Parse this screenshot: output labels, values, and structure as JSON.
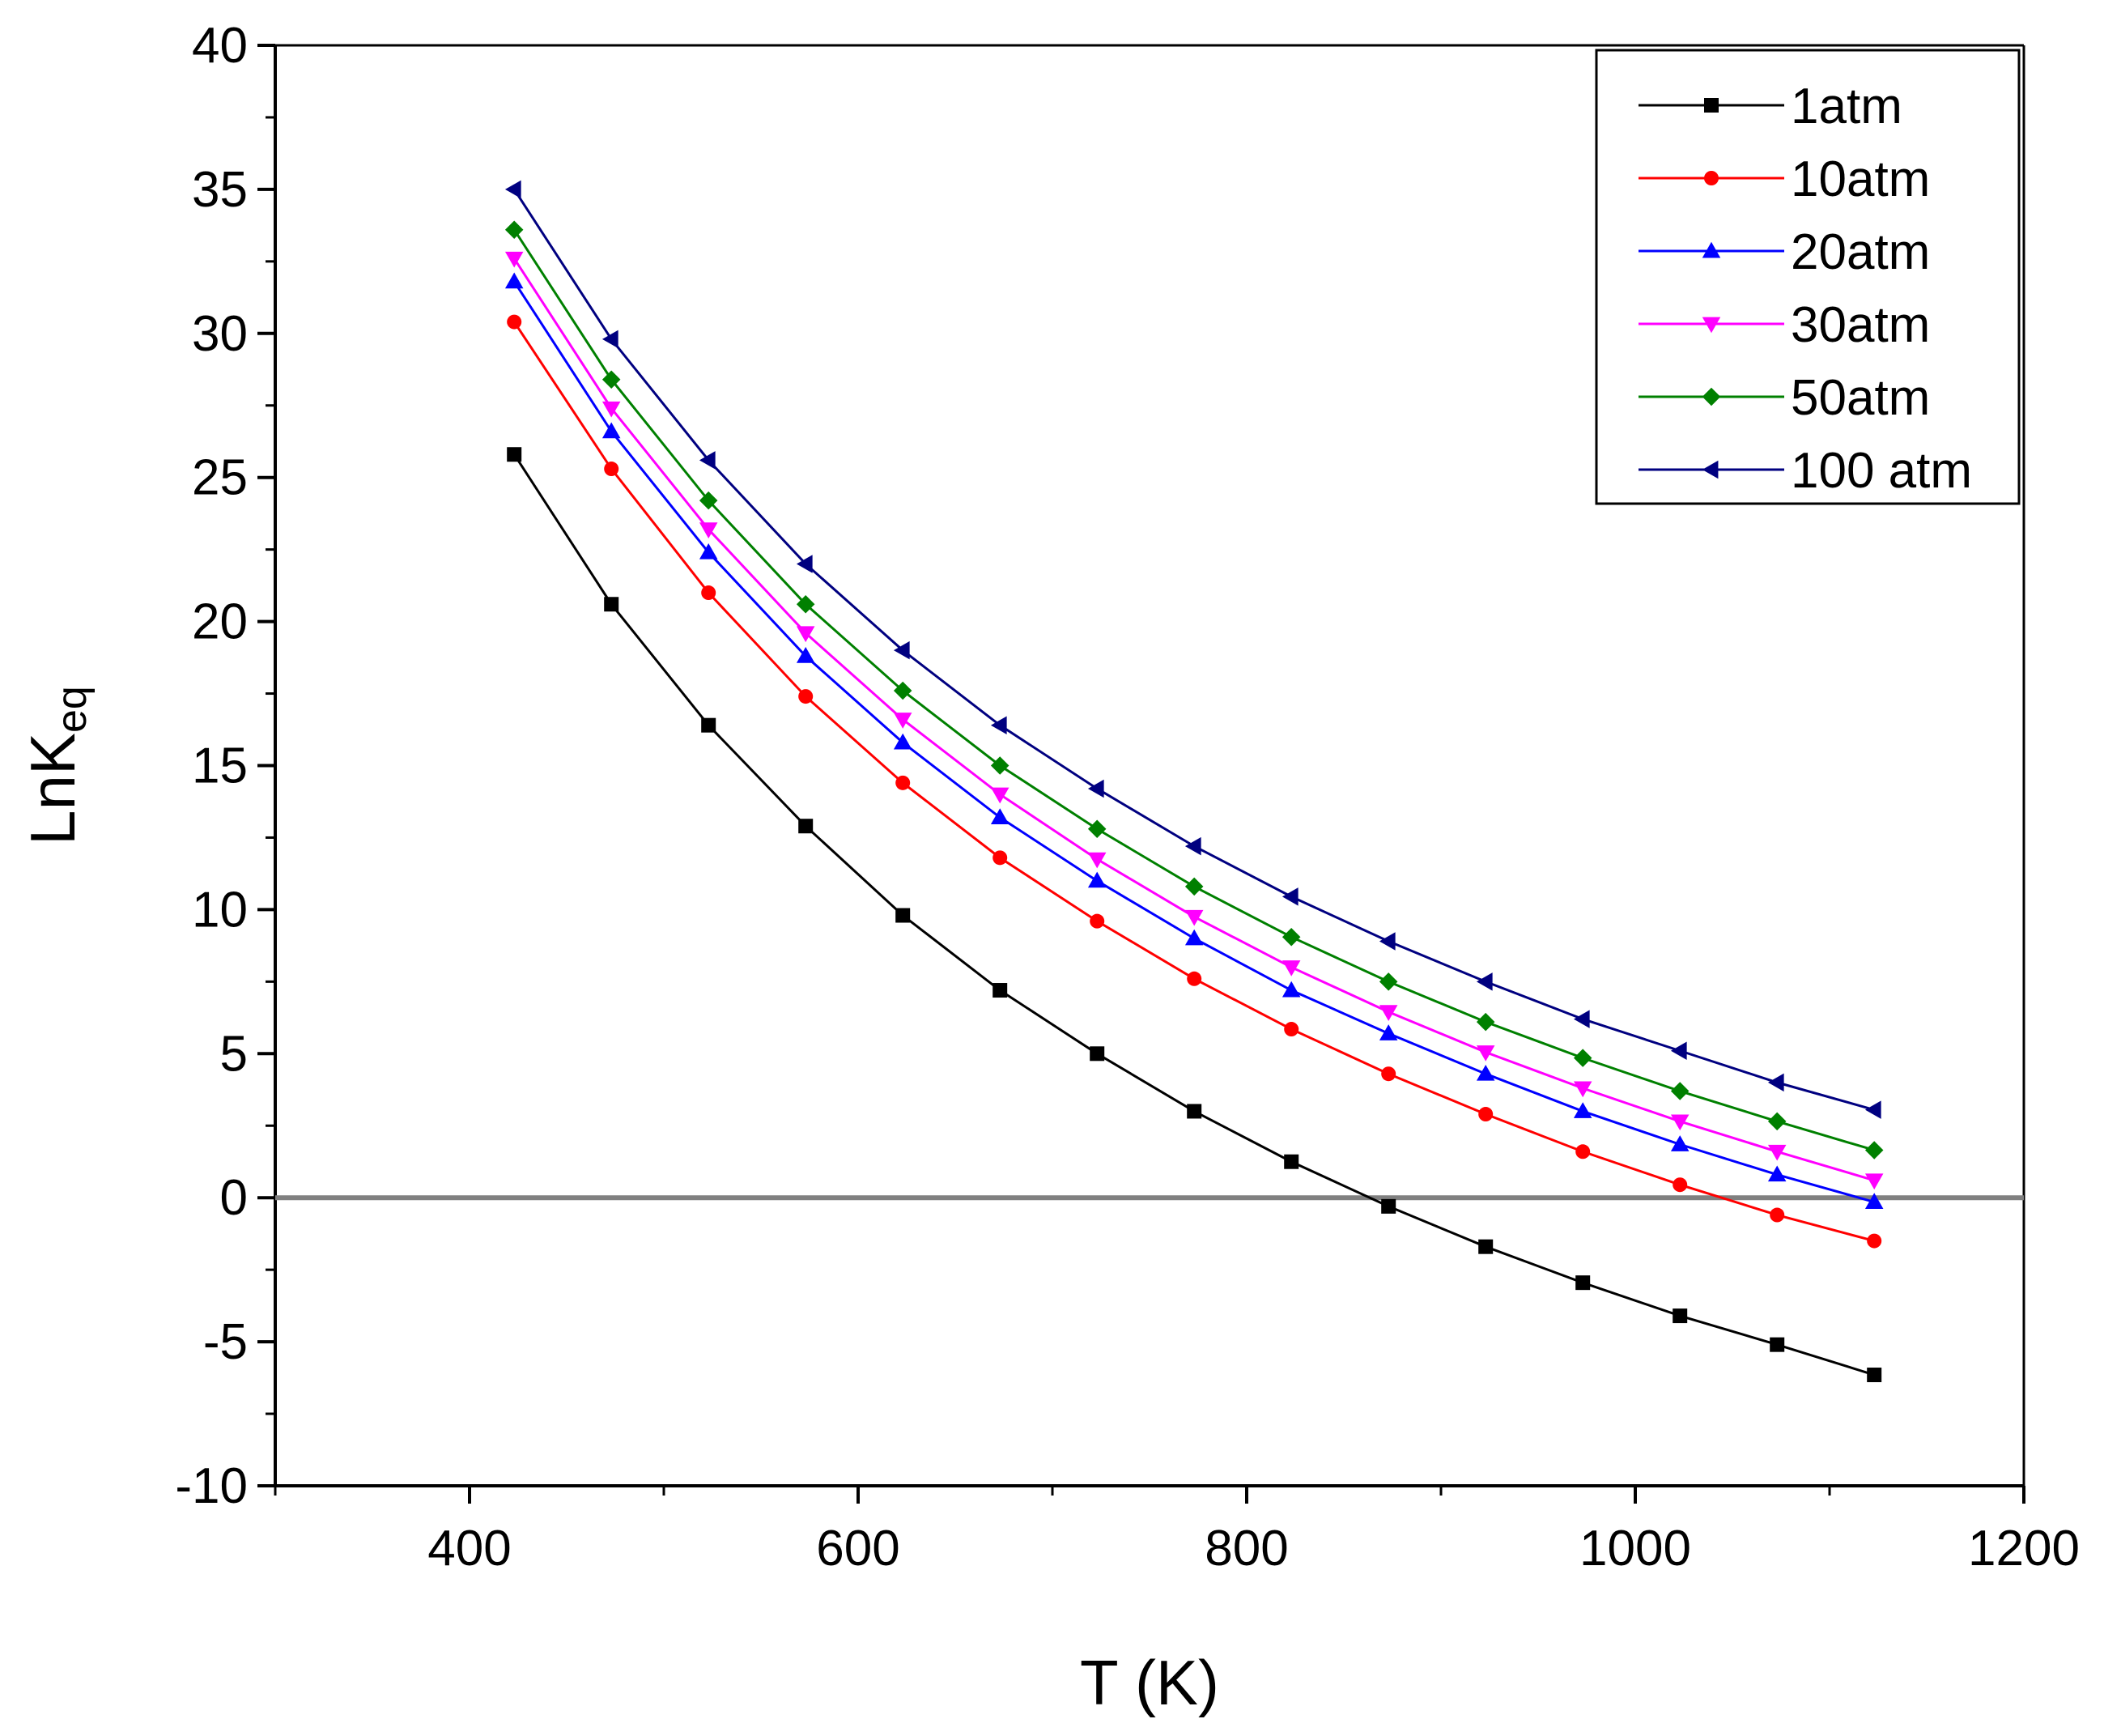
{
  "chart_data": {
    "type": "line",
    "title": "",
    "xlabel": "T (K)",
    "ylabel": {
      "base": "LnK",
      "sub": "eq"
    },
    "xlim": [
      300,
      1200
    ],
    "ylim": [
      -10,
      40
    ],
    "xticks": [
      400,
      600,
      800,
      1000,
      1200
    ],
    "yticks": [
      -10,
      -5,
      0,
      5,
      10,
      15,
      20,
      25,
      30,
      35,
      40
    ],
    "reference_line": {
      "y": 0,
      "color": "#808080"
    },
    "legend_position": "top-right",
    "x": [
      423,
      473,
      523,
      573,
      623,
      673,
      723,
      773,
      823,
      873,
      923,
      973,
      1023,
      1073,
      1123
    ],
    "series": [
      {
        "name": "1atm",
        "color": "#000000",
        "marker": "square",
        "values": [
          25.8,
          20.6,
          16.4,
          12.9,
          9.8,
          7.2,
          5.0,
          3.0,
          1.25,
          -0.3,
          -1.7,
          -2.95,
          -4.1,
          -5.1,
          -6.15
        ]
      },
      {
        "name": "10atm",
        "color": "#ff0000",
        "marker": "circle",
        "values": [
          30.4,
          25.3,
          21.0,
          17.4,
          14.4,
          11.8,
          9.6,
          7.6,
          5.85,
          4.3,
          2.9,
          1.6,
          0.45,
          -0.6,
          -1.5
        ]
      },
      {
        "name": "20atm",
        "color": "#0000ff",
        "marker": "triangle-up",
        "values": [
          31.8,
          26.6,
          22.4,
          18.8,
          15.8,
          13.2,
          11.0,
          9.0,
          7.2,
          5.7,
          4.3,
          3.0,
          1.85,
          0.8,
          -0.15
        ]
      },
      {
        "name": "30atm",
        "color": "#ff00ff",
        "marker": "triangle-down",
        "values": [
          32.6,
          27.4,
          23.2,
          19.6,
          16.6,
          14.0,
          11.75,
          9.75,
          8.0,
          6.45,
          5.05,
          3.8,
          2.65,
          1.6,
          0.6
        ]
      },
      {
        "name": "50atm",
        "color": "#008000",
        "marker": "diamond",
        "values": [
          33.6,
          28.4,
          24.2,
          20.6,
          17.6,
          15.0,
          12.8,
          10.8,
          9.05,
          7.5,
          6.1,
          4.85,
          3.7,
          2.65,
          1.65
        ]
      },
      {
        "name": "100 atm",
        "color": "#000080",
        "marker": "triangle-left",
        "values": [
          35.0,
          29.8,
          25.6,
          22.0,
          19.0,
          16.4,
          14.2,
          12.2,
          10.45,
          8.9,
          7.5,
          6.2,
          5.1,
          4.0,
          3.05
        ]
      }
    ]
  }
}
